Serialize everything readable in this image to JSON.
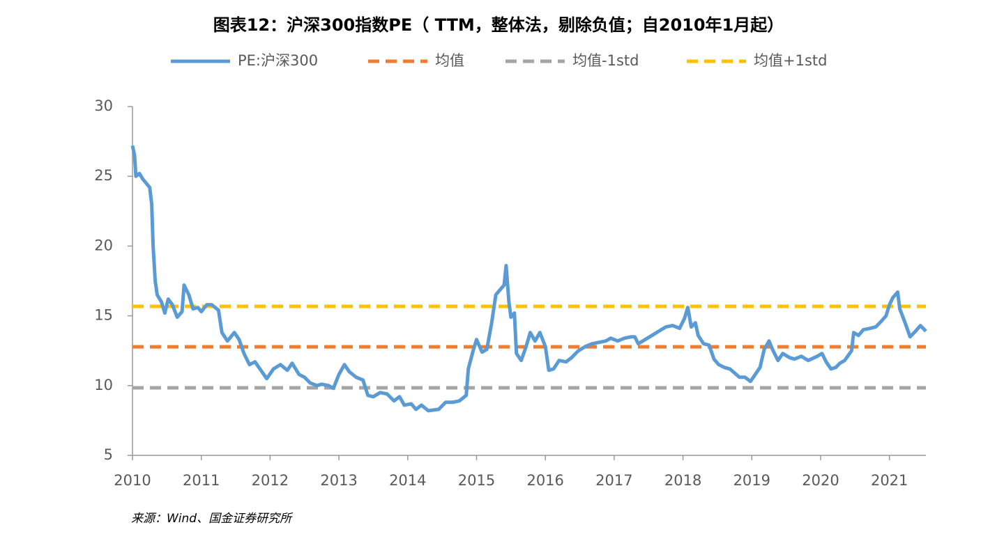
{
  "chart_data": {
    "type": "line",
    "title": "图表12：沪深300指数PE（ TTM，整体法，剔除负值；自2010年1月起）",
    "source": "来源：Wind、国金证券研究所",
    "xlim": [
      2010,
      2021.53
    ],
    "xticks": [
      2010,
      2011,
      2012,
      2013,
      2014,
      2015,
      2016,
      2017,
      2018,
      2019,
      2020,
      2021
    ],
    "ylim": [
      5,
      30
    ],
    "yticks": [
      5,
      10,
      15,
      20,
      25,
      30
    ],
    "grid": false,
    "legend": "top",
    "series": [
      {
        "name": "PE:沪深300",
        "color": "#5b9bd5",
        "line_style": "solid",
        "x": [
          2010.0,
          2010.03,
          2010.05,
          2010.1,
          2010.15,
          2010.25,
          2010.28,
          2010.3,
          2010.33,
          2010.36,
          2010.42,
          2010.47,
          2010.52,
          2010.58,
          2010.65,
          2010.72,
          2010.75,
          2010.82,
          2010.88,
          2010.95,
          2011.0,
          2011.08,
          2011.15,
          2011.25,
          2011.3,
          2011.38,
          2011.48,
          2011.55,
          2011.62,
          2011.7,
          2011.78,
          2011.88,
          2011.95,
          2012.05,
          2012.15,
          2012.25,
          2012.32,
          2012.42,
          2012.5,
          2012.58,
          2012.68,
          2012.75,
          2012.85,
          2012.92,
          2013.0,
          2013.08,
          2013.15,
          2013.25,
          2013.35,
          2013.42,
          2013.5,
          2013.6,
          2013.7,
          2013.8,
          2013.88,
          2013.95,
          2014.05,
          2014.12,
          2014.2,
          2014.3,
          2014.45,
          2014.55,
          2014.65,
          2014.75,
          2014.85,
          2014.88,
          2014.95,
          2015.0,
          2015.08,
          2015.15,
          2015.22,
          2015.28,
          2015.33,
          2015.4,
          2015.43,
          2015.47,
          2015.5,
          2015.55,
          2015.58,
          2015.65,
          2015.72,
          2015.78,
          2015.85,
          2015.92,
          2016.0,
          2016.05,
          2016.12,
          2016.2,
          2016.3,
          2016.38,
          2016.48,
          2016.58,
          2016.68,
          2016.78,
          2016.88,
          2016.95,
          2017.05,
          2017.15,
          2017.25,
          2017.3,
          2017.35,
          2017.45,
          2017.55,
          2017.65,
          2017.75,
          2017.85,
          2017.95,
          2018.02,
          2018.07,
          2018.12,
          2018.18,
          2018.22,
          2018.3,
          2018.38,
          2018.45,
          2018.52,
          2018.6,
          2018.68,
          2018.75,
          2018.82,
          2018.9,
          2018.98,
          2019.05,
          2019.12,
          2019.18,
          2019.25,
          2019.3,
          2019.38,
          2019.45,
          2019.55,
          2019.62,
          2019.72,
          2019.82,
          2019.95,
          2020.02,
          2020.08,
          2020.15,
          2020.22,
          2020.28,
          2020.35,
          2020.45,
          2020.48,
          2020.55,
          2020.62,
          2020.72,
          2020.8,
          2020.88,
          2020.95,
          2021.0,
          2021.05,
          2021.12,
          2021.15,
          2021.22,
          2021.3,
          2021.38,
          2021.45,
          2021.53
        ],
        "values": [
          27.2,
          26.5,
          25,
          25.2,
          24.8,
          24.2,
          23,
          20,
          17.5,
          16.5,
          16,
          15.2,
          16.2,
          15.8,
          14.9,
          15.3,
          17.2,
          16.5,
          15.5,
          15.6,
          15.3,
          15.8,
          15.8,
          15.4,
          13.8,
          13.2,
          13.8,
          13.3,
          12.3,
          11.5,
          11.7,
          11.0,
          10.5,
          11.2,
          11.5,
          11.1,
          11.6,
          10.8,
          10.6,
          10.2,
          10.0,
          10.1,
          10.0,
          9.8,
          10.8,
          11.5,
          11.0,
          10.6,
          10.4,
          9.3,
          9.2,
          9.5,
          9.4,
          8.9,
          9.2,
          8.6,
          8.7,
          8.3,
          8.6,
          8.2,
          8.3,
          8.8,
          8.8,
          8.9,
          9.3,
          11.2,
          12.5,
          13.3,
          12.4,
          12.6,
          14.5,
          16.5,
          16.8,
          17.2,
          18.6,
          16.0,
          14.9,
          15.2,
          12.3,
          11.8,
          12.8,
          13.8,
          13.2,
          13.8,
          12.8,
          11.1,
          11.2,
          11.8,
          11.7,
          12.0,
          12.5,
          12.8,
          13.0,
          13.1,
          13.2,
          13.4,
          13.2,
          13.4,
          13.5,
          13.5,
          13.0,
          13.3,
          13.6,
          13.9,
          14.2,
          14.3,
          14.1,
          14.8,
          15.6,
          14.2,
          14.5,
          13.6,
          13.0,
          12.9,
          11.9,
          11.5,
          11.3,
          11.2,
          10.9,
          10.6,
          10.6,
          10.3,
          10.8,
          11.3,
          12.6,
          13.2,
          12.6,
          11.8,
          12.3,
          12.0,
          11.9,
          12.1,
          11.8,
          12.1,
          12.3,
          11.7,
          11.2,
          11.3,
          11.6,
          11.8,
          12.5,
          13.8,
          13.6,
          14.0,
          14.1,
          14.2,
          14.6,
          15.0,
          15.8,
          16.3,
          16.7,
          15.5,
          14.6,
          13.5,
          13.9,
          14.3,
          13.9
        ]
      },
      {
        "name": "均值",
        "color": "#ed7d31",
        "line_style": "dashed",
        "x": [
          2010,
          2021.53
        ],
        "values": [
          12.78,
          12.78
        ]
      },
      {
        "name": "均值-1std",
        "color": "#a5a5a5",
        "line_style": "dashed",
        "x": [
          2010,
          2021.53
        ],
        "values": [
          9.84,
          9.84
        ]
      },
      {
        "name": "均值+1std",
        "color": "#ffc000",
        "line_style": "dashed",
        "x": [
          2010,
          2021.53
        ],
        "values": [
          15.68,
          15.68
        ]
      }
    ]
  }
}
